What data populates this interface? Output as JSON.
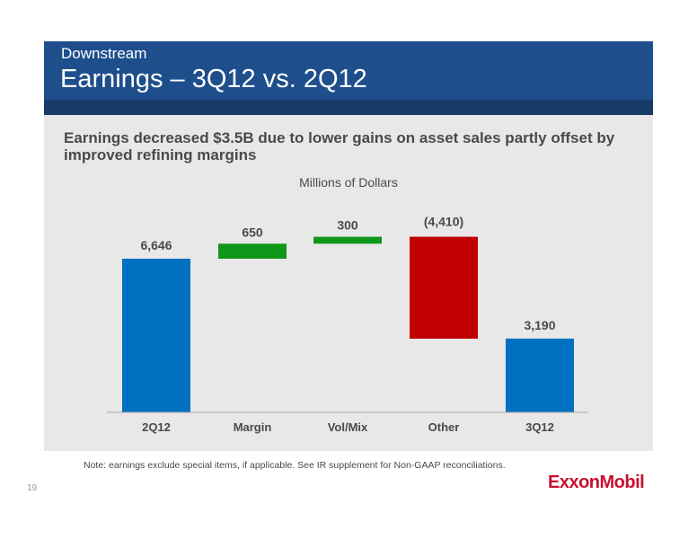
{
  "header": {
    "kicker": "Downstream",
    "title": "Earnings – 3Q12 vs. 2Q12"
  },
  "subtitle": "Earnings decreased $3.5B due to lower gains on asset sales partly offset by improved refining margins",
  "units_label": "Millions of Dollars",
  "note": "Note: earnings exclude special items, if applicable. See IR supplement for Non-GAAP reconciliations.",
  "page_number": "19",
  "logo_text": "ExxonMobil",
  "colors": {
    "header": "#1f4e8c",
    "total_bar": "#0070c0",
    "increase_bar": "#109618",
    "decrease_bar": "#c00000",
    "logo": "#c8102e"
  },
  "chart_data": {
    "type": "waterfall",
    "ylabel": "Millions of Dollars",
    "categories": [
      "2Q12",
      "Margin",
      "Vol/Mix",
      "Other",
      "3Q12"
    ],
    "values": [
      6646,
      650,
      300,
      -4410,
      3190
    ],
    "kinds": [
      "total",
      "increase",
      "increase",
      "decrease",
      "total"
    ],
    "labels": [
      "6,646",
      "650",
      "300",
      "(4,410)",
      "3,190"
    ],
    "ylim": [
      0,
      8000
    ],
    "grid": false
  }
}
